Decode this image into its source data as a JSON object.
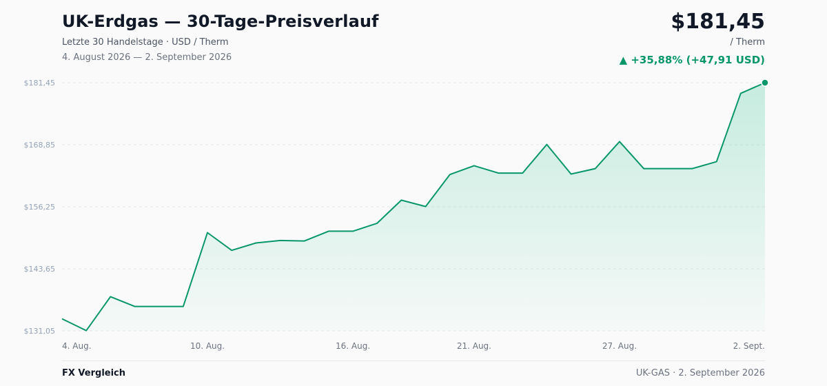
{
  "header": {
    "title": "UK-Erdgas — 30-Tage-Preisverlauf",
    "subtitle": "Letzte 30 Handelstage · USD / Therm",
    "date_range": "4. August 2026 — 2. September 2026",
    "price": "$181,45",
    "unit": "/ Therm",
    "change": "▲ +35,88% (+47,91 USD)"
  },
  "footer": {
    "brand": "FX Vergleich",
    "info": "UK-GAS · 2. September 2026"
  },
  "colors": {
    "line": "#059669",
    "area": "#10b981",
    "grid": "#e5e7eb",
    "axis_text": "#94a3b8",
    "x_text": "#6b7280"
  },
  "chart_data": {
    "type": "area",
    "y_ticks": [
      131.05,
      143.65,
      156.25,
      168.85,
      181.45
    ],
    "y_tick_labels": [
      "$131,05",
      "$143,65",
      "$156,25",
      "$168,85",
      "$181,45"
    ],
    "ylim": [
      131.05,
      181.45
    ],
    "x_tick_labels": [
      {
        "index": 0,
        "label": "4. Aug."
      },
      {
        "index": 6,
        "label": "10. Aug."
      },
      {
        "index": 12,
        "label": "16. Aug."
      },
      {
        "index": 17,
        "label": "21. Aug."
      },
      {
        "index": 23,
        "label": "27. Aug."
      },
      {
        "index": 29,
        "label": "2. Sept."
      }
    ],
    "series": [
      {
        "values": [
          133.5,
          131.1,
          138.0,
          136.0,
          136.0,
          136.0,
          151.0,
          147.4,
          148.9,
          149.4,
          149.3,
          151.3,
          151.3,
          152.9,
          157.6,
          156.3,
          162.8,
          164.6,
          163.1,
          163.1,
          168.9,
          162.9,
          164.0,
          169.5,
          164.0,
          164.0,
          164.0,
          165.4,
          179.3,
          181.45
        ]
      }
    ],
    "grid": true,
    "last_point_marker": true
  }
}
